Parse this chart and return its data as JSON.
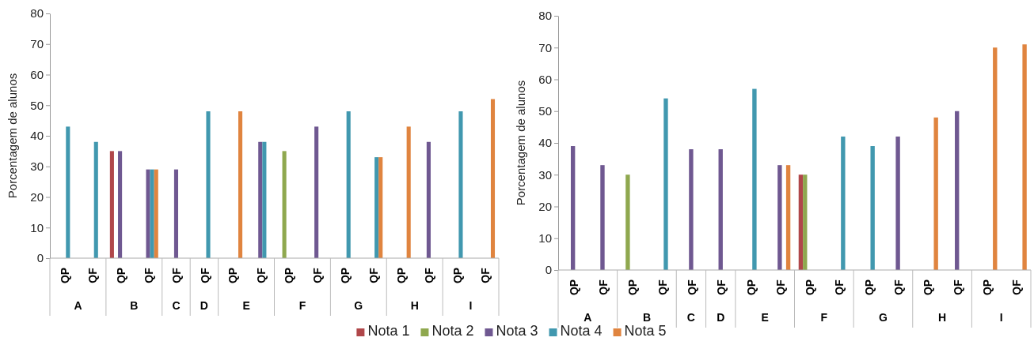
{
  "chart_data": [
    {
      "type": "bar",
      "ylabel": "Porcentagem de alunos",
      "categories": [
        "QP",
        "QF",
        "QP",
        "QF",
        "QF",
        "QF",
        "QP",
        "QF",
        "QP",
        "QF",
        "QP",
        "QF",
        "QP",
        "QF",
        "QP",
        "QF"
      ],
      "annotations": [
        "A",
        "B",
        "C",
        "D",
        "E",
        "F",
        "G",
        "H",
        "I"
      ],
      "series": [
        {
          "name": "Nota 1",
          "color": "#b0474a",
          "values": [
            null,
            null,
            35,
            null,
            null,
            null,
            null,
            null,
            null,
            null,
            null,
            null,
            null,
            null,
            null,
            null
          ]
        },
        {
          "name": "Nota 2",
          "color": "#8fa84f",
          "values": [
            null,
            null,
            null,
            null,
            null,
            null,
            null,
            null,
            35,
            null,
            null,
            null,
            null,
            null,
            null,
            null
          ]
        },
        {
          "name": "Nota 3",
          "color": "#6f5891",
          "values": [
            null,
            null,
            35,
            29,
            29,
            null,
            null,
            38,
            null,
            43,
            null,
            null,
            null,
            38,
            null,
            null
          ]
        },
        {
          "name": "Nota 4",
          "color": "#4198af",
          "values": [
            43,
            38,
            null,
            29,
            null,
            48,
            null,
            38,
            null,
            null,
            48,
            33,
            null,
            null,
            48,
            null
          ]
        },
        {
          "name": "Nota 5",
          "color": "#e0843f",
          "values": [
            null,
            null,
            null,
            29,
            null,
            null,
            48,
            null,
            null,
            null,
            null,
            33,
            43,
            null,
            null,
            52
          ]
        }
      ],
      "ylim": [
        0,
        80
      ],
      "yticks": [
        0,
        10,
        20,
        30,
        40,
        50,
        60,
        70,
        80
      ],
      "legend": "bottom"
    },
    {
      "type": "bar",
      "ylabel": "Porcentagem de alunos",
      "categories": [
        "QP",
        "QF",
        "QP",
        "QF",
        "QF",
        "QF",
        "QP",
        "QF",
        "QP",
        "QF",
        "QP",
        "QF",
        "QP",
        "QF",
        "QP",
        "QF"
      ],
      "annotations": [
        "A",
        "B",
        "C",
        "D",
        "E",
        "F",
        "G",
        "H",
        "I"
      ],
      "series": [
        {
          "color": "#b0474a",
          "values": [
            null,
            null,
            null,
            null,
            null,
            null,
            null,
            null,
            30,
            null,
            null,
            null,
            null,
            null,
            null,
            null
          ]
        },
        {
          "color": "#8fa84f",
          "values": [
            null,
            null,
            30,
            null,
            null,
            null,
            null,
            null,
            30,
            null,
            null,
            null,
            null,
            null,
            null,
            null
          ]
        },
        {
          "color": "#6f5891",
          "values": [
            39,
            33,
            null,
            null,
            38,
            38,
            null,
            33,
            null,
            null,
            null,
            42,
            null,
            50,
            null,
            null
          ]
        },
        {
          "color": "#4198af",
          "values": [
            null,
            null,
            null,
            54,
            null,
            null,
            57,
            null,
            null,
            42,
            39,
            null,
            null,
            null,
            null,
            null
          ]
        },
        {
          "color": "#e0843f",
          "values": [
            null,
            null,
            null,
            null,
            null,
            null,
            null,
            33,
            null,
            null,
            null,
            null,
            48,
            null,
            70,
            71
          ]
        }
      ],
      "ylim": [
        0,
        80
      ],
      "yticks": [
        0,
        10,
        20,
        30,
        40,
        50,
        60,
        70,
        80
      ]
    }
  ]
}
